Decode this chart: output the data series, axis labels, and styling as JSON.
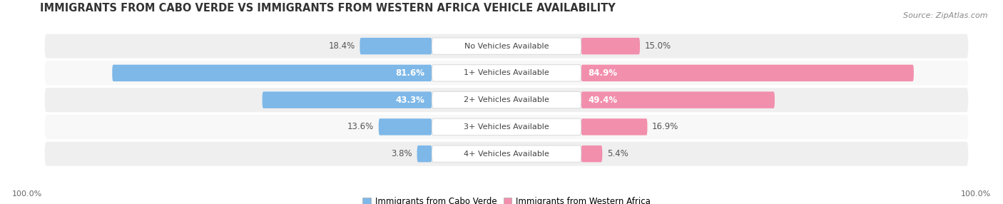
{
  "title": "IMMIGRANTS FROM CABO VERDE VS IMMIGRANTS FROM WESTERN AFRICA VEHICLE AVAILABILITY",
  "source": "Source: ZipAtlas.com",
  "categories": [
    "No Vehicles Available",
    "1+ Vehicles Available",
    "2+ Vehicles Available",
    "3+ Vehicles Available",
    "4+ Vehicles Available"
  ],
  "cabo_verde": [
    18.4,
    81.6,
    43.3,
    13.6,
    3.8
  ],
  "western_africa": [
    15.0,
    84.9,
    49.4,
    16.9,
    5.4
  ],
  "cabo_verde_color": "#7EB8E8",
  "western_africa_color": "#F28FAD",
  "row_bg_color": "#EFEFEF",
  "row_bg_alt": "#F8F8F8",
  "label_color_white": "#FFFFFF",
  "label_color_dark": "#555555",
  "title_fontsize": 10.5,
  "source_fontsize": 8,
  "bar_label_fontsize": 8.5,
  "category_fontsize": 8,
  "legend_fontsize": 8.5,
  "footer_fontsize": 8,
  "figsize": [
    14.06,
    2.86
  ],
  "dpi": 100
}
